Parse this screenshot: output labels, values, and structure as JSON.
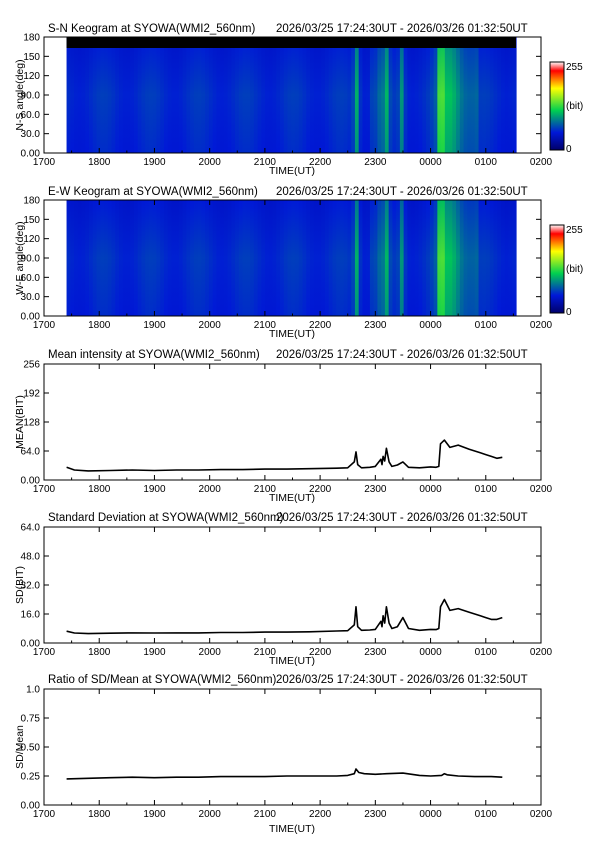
{
  "time_range": "2026/03/25 17:24:30UT - 2026/03/26 01:32:50UT",
  "station": "SYOWA(WMI2_560nm)",
  "colors": {
    "trace": "#000000",
    "keogram_scale": [
      "#00006a",
      "#0018d8",
      "#00d050",
      "#ffff00",
      "#ff0000",
      "#ffffff"
    ]
  },
  "chart_data": [
    {
      "type": "heatmap",
      "title": "S-N Keogram at SYOWA(WMI2_560nm)",
      "subtitle": "2026/03/25 17:24:30UT - 2026/03/26 01:32:50UT",
      "xlabel": "TIME(UT)",
      "ylabel": "N-S angle(deg)",
      "x_ticks": [
        "1700",
        "1800",
        "1900",
        "2000",
        "2100",
        "2200",
        "2300",
        "0000",
        "0100",
        "0200"
      ],
      "y_ticks": [
        "0.00",
        "30.0",
        "60.0",
        "90.0",
        "120",
        "150",
        "180"
      ],
      "ylim": [
        0,
        180
      ],
      "data_start": "17:24:30",
      "data_end": "01:32:50",
      "colorbar": {
        "ticks": [
          "255",
          "(bit)",
          "0"
        ],
        "range": [
          0,
          255
        ],
        "unit": "bit"
      },
      "no_data_top_band": true
    },
    {
      "type": "heatmap",
      "title": "E-W Keogram at SYOWA(WMI2_560nm)",
      "subtitle": "2026/03/25 17:24:30UT - 2026/03/26 01:32:50UT",
      "xlabel": "TIME(UT)",
      "ylabel": "W-E angle(deg)",
      "x_ticks": [
        "1700",
        "1800",
        "1900",
        "2000",
        "2100",
        "2200",
        "2300",
        "0000",
        "0100",
        "0200"
      ],
      "y_ticks": [
        "0.00",
        "30.0",
        "60.0",
        "90.0",
        "120",
        "150",
        "180"
      ],
      "ylim": [
        0,
        180
      ],
      "data_start": "17:24:30",
      "data_end": "01:32:50",
      "colorbar": {
        "ticks": [
          "255",
          "(bit)",
          "0"
        ],
        "range": [
          0,
          255
        ],
        "unit": "bit"
      },
      "no_data_top_band": false
    },
    {
      "type": "line",
      "title": "Mean intensity at SYOWA(WMI2_560nm)",
      "subtitle": "2026/03/25 17:24:30UT - 2026/03/26 01:32:50UT",
      "xlabel": "TIME(UT)",
      "ylabel": "MEAN(BIT)",
      "x_ticks": [
        "1700",
        "1800",
        "1900",
        "2000",
        "2100",
        "2200",
        "2300",
        "0000",
        "0100",
        "0200"
      ],
      "y_ticks": [
        "0.00",
        "64.0",
        "128",
        "192",
        "256"
      ],
      "ylim": [
        0,
        256
      ],
      "x_unit": "hours after 17:00 UT",
      "series": [
        {
          "x": [
            0.41,
            0.55,
            0.8,
            1.2,
            1.6,
            2.0,
            2.4,
            2.8,
            3.2,
            3.6,
            4.0,
            4.4,
            4.8,
            5.3,
            5.5,
            5.62,
            5.65,
            5.68,
            5.75,
            5.9,
            6.0,
            6.1,
            6.12,
            6.14,
            6.17,
            6.2,
            6.25,
            6.3,
            6.4,
            6.5,
            6.6,
            6.8,
            7.0,
            7.1,
            7.15,
            7.18,
            7.25,
            7.35,
            7.5,
            7.7,
            7.9,
            8.0,
            8.1,
            8.2,
            8.3
          ],
          "y": [
            28,
            22,
            20,
            21,
            22,
            21,
            22,
            22,
            23,
            23,
            24,
            24,
            25,
            26,
            27,
            40,
            62,
            34,
            27,
            28,
            30,
            46,
            34,
            52,
            42,
            70,
            40,
            30,
            33,
            40,
            28,
            27,
            29,
            28,
            30,
            80,
            88,
            72,
            77,
            68,
            60,
            56,
            52,
            48,
            50
          ]
        }
      ]
    },
    {
      "type": "line",
      "title": "Standard Deviation at SYOWA(WMI2_560nm)",
      "subtitle": "2026/03/25 17:24:30UT - 2026/03/26 01:32:50UT",
      "xlabel": "TIME(UT)",
      "ylabel": "SD(BIT)",
      "x_ticks": [
        "1700",
        "1800",
        "1900",
        "2000",
        "2100",
        "2200",
        "2300",
        "0000",
        "0100",
        "0200"
      ],
      "y_ticks": [
        "0.00",
        "16.0",
        "32.0",
        "48.0",
        "64.0"
      ],
      "ylim": [
        0,
        64
      ],
      "x_unit": "hours after 17:00 UT",
      "series": [
        {
          "x": [
            0.41,
            0.55,
            0.8,
            1.2,
            1.6,
            2.0,
            2.4,
            2.8,
            3.2,
            3.6,
            4.0,
            4.4,
            4.8,
            5.3,
            5.5,
            5.62,
            5.65,
            5.68,
            5.75,
            5.9,
            6.0,
            6.1,
            6.12,
            6.14,
            6.17,
            6.2,
            6.25,
            6.3,
            6.4,
            6.5,
            6.6,
            6.8,
            7.0,
            7.1,
            7.15,
            7.18,
            7.25,
            7.35,
            7.5,
            7.7,
            7.9,
            8.0,
            8.1,
            8.2,
            8.3
          ],
          "y": [
            6.5,
            5.5,
            5.2,
            5.4,
            5.6,
            5.5,
            5.6,
            5.6,
            5.8,
            5.8,
            6.0,
            6.0,
            6.2,
            6.6,
            6.8,
            10,
            20,
            9,
            7,
            7.2,
            7.5,
            12,
            9,
            15,
            11,
            20,
            11,
            8,
            9,
            14,
            8,
            7,
            7.5,
            7.4,
            8,
            20,
            24,
            18,
            19,
            17,
            15,
            14,
            13,
            13,
            14
          ]
        }
      ]
    },
    {
      "type": "line",
      "title": "Ratio of SD/Mean at SYOWA(WMI2_560nm)",
      "subtitle": "2026/03/25 17:24:30UT - 2026/03/26 01:32:50UT",
      "xlabel": "TIME(UT)",
      "ylabel": "SD/Mean",
      "x_ticks": [
        "1700",
        "1800",
        "1900",
        "2000",
        "2100",
        "2200",
        "2300",
        "0000",
        "0100",
        "0200"
      ],
      "y_ticks": [
        "0.00",
        "0.25",
        "0.50",
        "0.75",
        "1.0"
      ],
      "ylim": [
        0,
        1
      ],
      "x_unit": "hours after 17:00 UT",
      "series": [
        {
          "x": [
            0.41,
            0.8,
            1.2,
            1.6,
            2.0,
            2.4,
            2.8,
            3.2,
            3.6,
            4.0,
            4.4,
            4.8,
            5.3,
            5.5,
            5.62,
            5.65,
            5.7,
            5.8,
            6.0,
            6.2,
            6.5,
            6.8,
            7.0,
            7.2,
            7.25,
            7.3,
            7.5,
            7.8,
            8.1,
            8.3
          ],
          "y": [
            0.225,
            0.23,
            0.235,
            0.24,
            0.235,
            0.24,
            0.24,
            0.245,
            0.245,
            0.245,
            0.25,
            0.25,
            0.25,
            0.255,
            0.27,
            0.31,
            0.28,
            0.27,
            0.265,
            0.27,
            0.275,
            0.255,
            0.25,
            0.255,
            0.27,
            0.26,
            0.25,
            0.245,
            0.245,
            0.24
          ]
        }
      ]
    }
  ]
}
